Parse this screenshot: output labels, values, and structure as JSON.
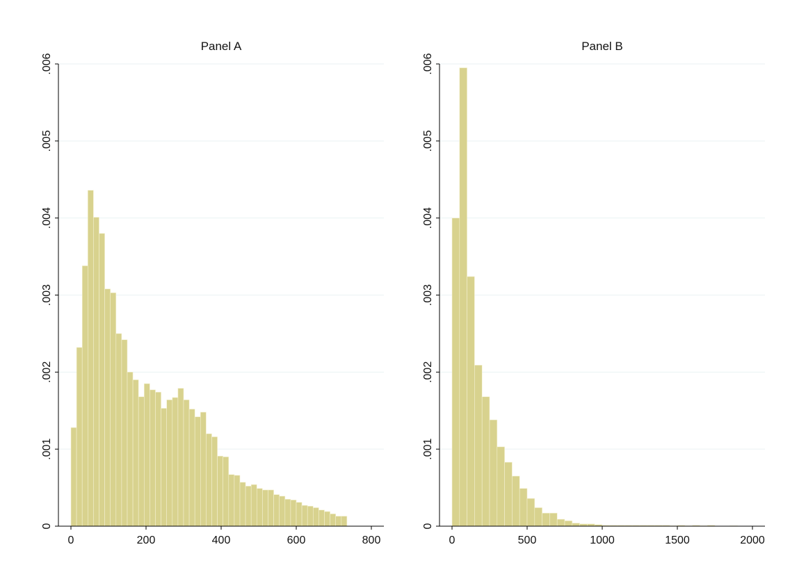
{
  "chart_data": [
    {
      "type": "bar",
      "subtype": "histogram",
      "title": "Panel A",
      "xlabel": "",
      "ylabel": "",
      "xlim": [
        0,
        800
      ],
      "ylim": [
        0,
        0.006
      ],
      "x_ticks": [
        0,
        200,
        400,
        600,
        800
      ],
      "x_tick_labels": [
        "0",
        "200",
        "400",
        "600",
        "800"
      ],
      "y_ticks": [
        0,
        0.001,
        0.002,
        0.003,
        0.004,
        0.005,
        0.006
      ],
      "y_tick_labels": [
        "0",
        ".001",
        ".002",
        ".003",
        ".004",
        ".005",
        ".006"
      ],
      "grid": true,
      "bar_color": "#d8d28e",
      "bin_start": 0,
      "bin_width": 15,
      "values": [
        0.00128,
        0.00232,
        0.00338,
        0.00436,
        0.00401,
        0.0038,
        0.00308,
        0.00303,
        0.0025,
        0.00242,
        0.002,
        0.0019,
        0.00168,
        0.00185,
        0.00177,
        0.00174,
        0.00153,
        0.00164,
        0.00167,
        0.00179,
        0.00164,
        0.00152,
        0.00142,
        0.00148,
        0.0012,
        0.00116,
        0.00091,
        0.0009,
        0.00067,
        0.00066,
        0.00057,
        0.00052,
        0.00054,
        0.00049,
        0.00047,
        0.00047,
        0.00041,
        0.00039,
        0.00035,
        0.00034,
        0.00031,
        0.00027,
        0.00026,
        0.00024,
        0.00021,
        0.00019,
        0.00016,
        0.00013,
        0.00013
      ]
    },
    {
      "type": "bar",
      "subtype": "histogram",
      "title": "Panel B",
      "xlabel": "",
      "ylabel": "",
      "xlim": [
        0,
        2000
      ],
      "ylim": [
        0,
        0.006
      ],
      "x_ticks": [
        0,
        500,
        1000,
        1500,
        2000
      ],
      "x_tick_labels": [
        "0",
        "500",
        "1000",
        "1500",
        "2000"
      ],
      "y_ticks": [
        0,
        0.001,
        0.002,
        0.003,
        0.004,
        0.005,
        0.006
      ],
      "y_tick_labels": [
        "0",
        ".001",
        ".002",
        ".003",
        ".004",
        ".005",
        ".006"
      ],
      "grid": true,
      "bar_color": "#d8d28e",
      "bin_start": 0,
      "bin_width": 50,
      "values": [
        0.004,
        0.00595,
        0.00324,
        0.00209,
        0.00168,
        0.00138,
        0.00103,
        0.00083,
        0.00065,
        0.00049,
        0.00036,
        0.00024,
        0.00017,
        0.00017,
        9e-05,
        7e-05,
        4e-05,
        3e-05,
        3e-05,
        2e-05,
        1e-05,
        1e-05,
        1e-05,
        1e-05,
        1e-05,
        1e-05,
        1e-05,
        1e-05,
        1e-05,
        5e-06,
        1e-05,
        5e-06,
        1e-05,
        5e-06,
        1e-05,
        0,
        0,
        5e-06,
        0,
        0
      ]
    }
  ]
}
